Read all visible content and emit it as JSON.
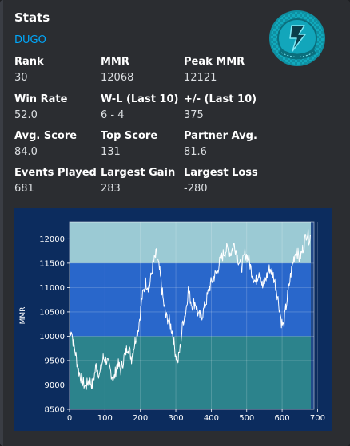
{
  "embed": {
    "title": "Stats",
    "player_name": "DUGO",
    "logo_icon": "mario-kart-emblem",
    "fields": [
      {
        "label": "Rank",
        "value": "30"
      },
      {
        "label": "MMR",
        "value": "12068"
      },
      {
        "label": "Peak MMR",
        "value": "12121"
      },
      {
        "label": "Win Rate",
        "value": "52.0"
      },
      {
        "label": "W-L (Last 10)",
        "value": "6 - 4"
      },
      {
        "label": "+/- (Last 10)",
        "value": "375"
      },
      {
        "label": "Avg. Score",
        "value": "84.0"
      },
      {
        "label": "Top Score",
        "value": "131"
      },
      {
        "label": "Partner Avg.",
        "value": "81.6"
      },
      {
        "label": "Events Played",
        "value": "681"
      },
      {
        "label": "Largest Gain",
        "value": "283"
      },
      {
        "label": "Largest Loss",
        "value": "-280"
      }
    ]
  },
  "colors": {
    "link": "#00a8fc",
    "chart_bg": "#0c2c5e",
    "plot_bg": "#234a8a",
    "band_top": "#a9d8dc",
    "band_mid": "#2a6cd6",
    "band_low": "#2d8a8c",
    "line": "#ffffff"
  },
  "chart_data": {
    "type": "line",
    "xlabel": "",
    "ylabel": "MMR",
    "xlim": [
      0,
      690
    ],
    "ylim": [
      8500,
      12350
    ],
    "xticks": [
      0,
      100,
      200,
      300,
      400,
      500,
      600,
      700
    ],
    "yticks": [
      8500,
      9000,
      9500,
      10000,
      10500,
      11000,
      11500,
      12000
    ],
    "grid": true,
    "bands": [
      {
        "from": 11500,
        "to": 12350,
        "color": "#a9d8dc"
      },
      {
        "from": 10000,
        "to": 11500,
        "color": "#2a6cd6"
      },
      {
        "from": 8500,
        "to": 10000,
        "color": "#2d8a8c"
      }
    ],
    "series": [
      {
        "keypoints": [
          [
            0,
            10050
          ],
          [
            5,
            10150
          ],
          [
            10,
            9900
          ],
          [
            18,
            9600
          ],
          [
            25,
            9300
          ],
          [
            35,
            9100
          ],
          [
            45,
            8950
          ],
          [
            55,
            9100
          ],
          [
            65,
            9000
          ],
          [
            75,
            9400
          ],
          [
            85,
            9200
          ],
          [
            95,
            9550
          ],
          [
            105,
            9500
          ],
          [
            115,
            9300
          ],
          [
            125,
            9100
          ],
          [
            135,
            9450
          ],
          [
            145,
            9300
          ],
          [
            155,
            9600
          ],
          [
            165,
            9800
          ],
          [
            175,
            9550
          ],
          [
            185,
            9900
          ],
          [
            195,
            10200
          ],
          [
            205,
            10800
          ],
          [
            215,
            11100
          ],
          [
            225,
            11000
          ],
          [
            235,
            11450
          ],
          [
            245,
            11700
          ],
          [
            255,
            11300
          ],
          [
            265,
            10700
          ],
          [
            272,
            10400
          ],
          [
            280,
            10350
          ],
          [
            290,
            10100
          ],
          [
            298,
            9700
          ],
          [
            305,
            9450
          ],
          [
            312,
            9750
          ],
          [
            320,
            10300
          ],
          [
            328,
            10500
          ],
          [
            335,
            10950
          ],
          [
            345,
            10650
          ],
          [
            355,
            10700
          ],
          [
            365,
            10400
          ],
          [
            375,
            10450
          ],
          [
            385,
            10700
          ],
          [
            395,
            11000
          ],
          [
            405,
            11200
          ],
          [
            415,
            11300
          ],
          [
            425,
            11550
          ],
          [
            435,
            11700
          ],
          [
            445,
            11800
          ],
          [
            455,
            11700
          ],
          [
            465,
            11900
          ],
          [
            475,
            11600
          ],
          [
            485,
            11400
          ],
          [
            495,
            11700
          ],
          [
            505,
            11600
          ],
          [
            515,
            11300
          ],
          [
            525,
            11100
          ],
          [
            535,
            11350
          ],
          [
            545,
            11000
          ],
          [
            555,
            11200
          ],
          [
            565,
            11400
          ],
          [
            575,
            11250
          ],
          [
            583,
            11000
          ],
          [
            590,
            10700
          ],
          [
            598,
            10300
          ],
          [
            604,
            10200
          ],
          [
            610,
            10550
          ],
          [
            617,
            10900
          ],
          [
            625,
            11300
          ],
          [
            633,
            11600
          ],
          [
            640,
            11800
          ],
          [
            648,
            11600
          ],
          [
            655,
            11700
          ],
          [
            662,
            11900
          ],
          [
            668,
            12100
          ],
          [
            672,
            12121
          ],
          [
            675,
            12000
          ],
          [
            681,
            12068
          ]
        ]
      }
    ]
  }
}
